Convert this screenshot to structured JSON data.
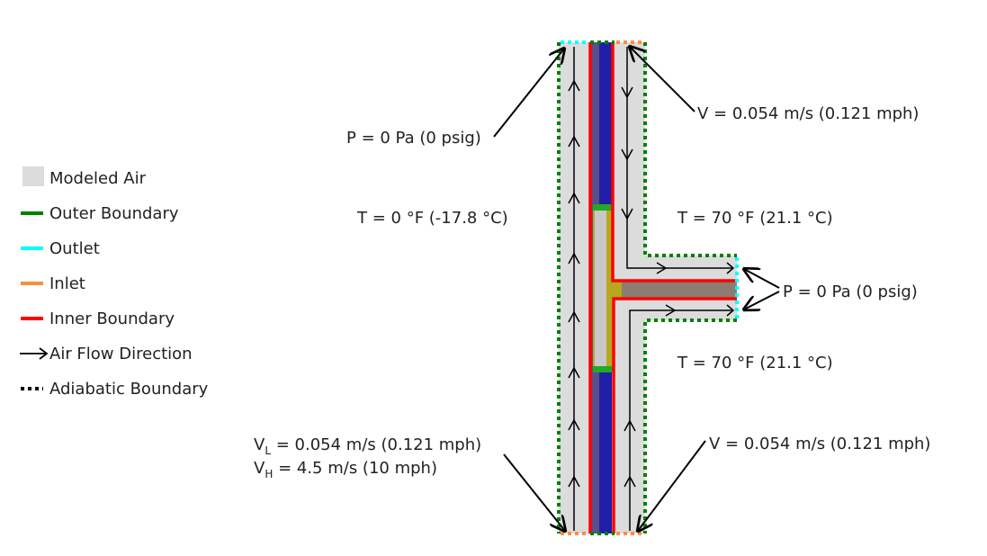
{
  "legend": {
    "items": [
      {
        "label": "Modeled Air",
        "color": "#dcdcdc",
        "symbol": "square"
      },
      {
        "label": "Outer Boundary",
        "color": "#008000",
        "symbol": "line"
      },
      {
        "label": "Outlet",
        "color": "#00ffff",
        "symbol": "line"
      },
      {
        "label": "Inlet",
        "color": "#ff8c42",
        "symbol": "line"
      },
      {
        "label": "Inner Boundary",
        "color": "#ff0000",
        "symbol": "line"
      },
      {
        "label": "Air Flow Direction",
        "color": "#000000",
        "symbol": "arrow"
      },
      {
        "label": "Adiabatic Boundary",
        "color": "#000000",
        "symbol": "dotted"
      }
    ]
  },
  "annotations": {
    "outlet_top_pressure": "P = 0 Pa (0 psig)",
    "inlet_top_velocity": "V = 0.054 m/s (0.121 mph)",
    "exterior_temp": "T = 0 °F (-17.8 °C)",
    "interior_temp_upper": "T = 70 °F (21.1 °C)",
    "interior_temp_lower": "T = 70 °F (21.1 °C)",
    "outlet_right_pressure": "P = 0 Pa (0 psig)",
    "inlet_bottom_left_vl_prefix": "V",
    "inlet_bottom_left_vl_sub": "L",
    "inlet_bottom_left_vl_value": " = 0.054 m/s (0.121 mph)",
    "inlet_bottom_left_vh_prefix": "V",
    "inlet_bottom_left_vh_sub": "H",
    "inlet_bottom_left_vh_value": " = 4.5 m/s (10 mph)",
    "inlet_bottom_right_velocity": "V = 0.054 m/s (0.121 mph)"
  },
  "colors": {
    "air": "#dcdcdc",
    "outer_boundary": "#008000",
    "outlet": "#00ffff",
    "inlet": "#ff8c42",
    "inner_boundary": "#ff0000",
    "insulation": "#1f1fa8",
    "sheathing": "#5a4f8a",
    "glass": "#c8c8c8",
    "frame": "#b8a820",
    "window_seal": "#22aa22",
    "slab": "#8b7d70"
  }
}
